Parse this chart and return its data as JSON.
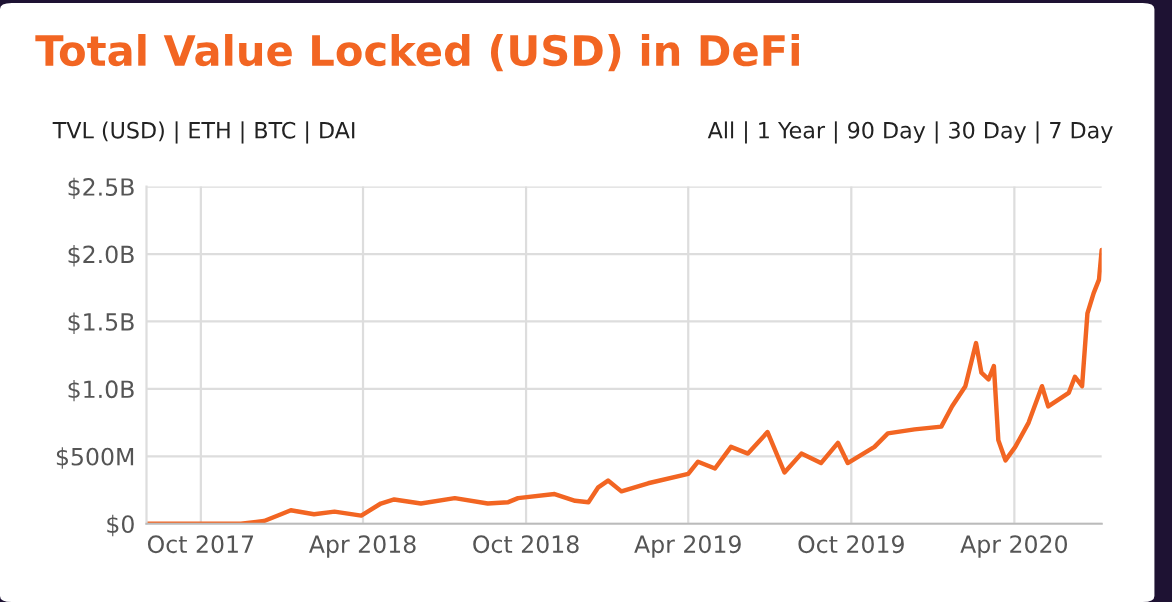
{
  "chart_data": {
    "type": "line",
    "title": "Total Value Locked (USD) in DeFi",
    "annotations": [
      "TVL (USD) | ETH | BTC | DAI",
      "All | 1 Year | 90 Day | 30 Day | 7 Day"
    ],
    "x": [
      "2017-08-01",
      "2017-11-15",
      "2017-12-11",
      "2017-12-30",
      "2018-01-10",
      "2018-02-05",
      "2018-02-28",
      "2018-03-30",
      "2018-04-21",
      "2018-05-06",
      "2018-06-05",
      "2018-07-13",
      "2018-08-19",
      "2018-09-11",
      "2018-09-22",
      "2018-11-02",
      "2018-11-25",
      "2018-12-10",
      "2018-12-21",
      "2019-01-01",
      "2019-01-16",
      "2019-02-15",
      "2019-04-01",
      "2019-04-12",
      "2019-05-01",
      "2019-05-19",
      "2019-06-07",
      "2019-06-29",
      "2019-07-18",
      "2019-08-06",
      "2019-08-28",
      "2019-09-16",
      "2019-09-27",
      "2019-10-27",
      "2019-11-11",
      "2019-12-11",
      "2020-01-10",
      "2020-01-22",
      "2020-02-06",
      "2020-02-18",
      "2020-02-24",
      "2020-03-03",
      "2020-03-09",
      "2020-03-14",
      "2020-03-22",
      "2020-04-02",
      "2020-04-17",
      "2020-05-02",
      "2020-05-09",
      "2020-06-01",
      "2020-06-08",
      "2020-06-16",
      "2020-06-22",
      "2020-06-29",
      "2020-07-05",
      "2020-07-08"
    ],
    "series": [
      {
        "color": "#f26522",
        "values": [
          0,
          0,
          20000000,
          70000000,
          100000000,
          70000000,
          90000000,
          60000000,
          150000000,
          180000000,
          150000000,
          190000000,
          150000000,
          160000000,
          190000000,
          220000000,
          170000000,
          160000000,
          270000000,
          320000000,
          240000000,
          300000000,
          370000000,
          460000000,
          410000000,
          570000000,
          520000000,
          680000000,
          380000000,
          520000000,
          450000000,
          600000000,
          450000000,
          570000000,
          670000000,
          700000000,
          720000000,
          870000000,
          1020000000,
          1340000000,
          1120000000,
          1070000000,
          1170000000,
          620000000,
          470000000,
          570000000,
          750000000,
          1020000000,
          870000000,
          970000000,
          1090000000,
          1020000000,
          1560000000,
          1710000000,
          1810000000,
          2030000000
        ]
      }
    ],
    "xlim": [
      "2017-08-01",
      "2020-07-08"
    ],
    "xticks": [
      {
        "value": "2017-10-01",
        "label": "Oct 2017"
      },
      {
        "value": "2018-04-01",
        "label": "Apr 2018"
      },
      {
        "value": "2018-10-01",
        "label": "Oct 2018"
      },
      {
        "value": "2019-04-01",
        "label": "Apr 2019"
      },
      {
        "value": "2019-10-01",
        "label": "Oct 2019"
      },
      {
        "value": "2020-04-01",
        "label": "Apr 2020"
      }
    ],
    "ylim": [
      0,
      2500000000
    ],
    "yticks": [
      {
        "value": 0,
        "label": "$0"
      },
      {
        "value": 500000000,
        "label": "$500M"
      },
      {
        "value": 1000000000,
        "label": "$1.0B"
      },
      {
        "value": 1500000000,
        "label": "$1.5B"
      },
      {
        "value": 2000000000,
        "label": "$2.0B"
      },
      {
        "value": 2500000000,
        "label": "$2.5B"
      }
    ],
    "grid": true,
    "marker": "none",
    "line_style": "solid"
  }
}
